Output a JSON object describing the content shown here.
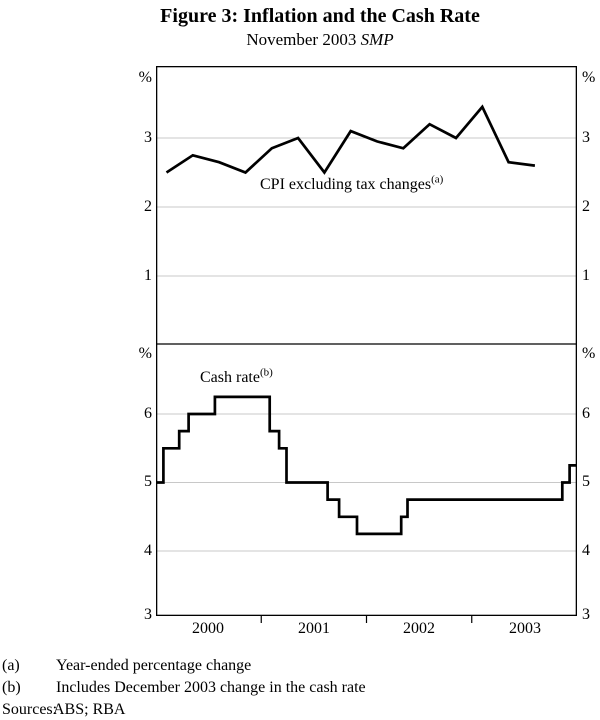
{
  "figure": {
    "title": "Figure 3: Inflation and the Cash Rate",
    "subtitle_prefix": "November 2003 ",
    "subtitle_em": "SMP"
  },
  "chart_data": [
    {
      "type": "line",
      "panel": "top",
      "series_label": "CPI excluding tax changes",
      "series_label_superscript": "(a)",
      "unit": "%",
      "ylim": [
        0,
        4
      ],
      "yticks": [
        1,
        2,
        3
      ],
      "quarters": [
        "2000Q1",
        "2000Q2",
        "2000Q3",
        "2000Q4",
        "2001Q1",
        "2001Q2",
        "2001Q3",
        "2001Q4",
        "2002Q1",
        "2002Q2",
        "2002Q3",
        "2002Q4",
        "2003Q1",
        "2003Q2",
        "2003Q3"
      ],
      "x": [
        2000.1,
        2000.35,
        2000.6,
        2000.85,
        2001.1,
        2001.35,
        2001.6,
        2001.85,
        2002.1,
        2002.35,
        2002.6,
        2002.85,
        2003.1,
        2003.35,
        2003.6
      ],
      "values": [
        2.5,
        2.75,
        2.65,
        2.5,
        2.85,
        3.0,
        2.5,
        3.1,
        2.95,
        2.85,
        3.2,
        3.0,
        3.45,
        2.65,
        2.6
      ]
    },
    {
      "type": "step-line",
      "panel": "bottom",
      "series_label": "Cash rate",
      "series_label_superscript": "(b)",
      "unit": "%",
      "ylim": [
        3,
        7
      ],
      "yticks": [
        4,
        5,
        6
      ],
      "x_end": 2004.0,
      "steps": [
        {
          "x": 2000.0,
          "y": 5.0
        },
        {
          "x": 2000.07,
          "y": 5.5
        },
        {
          "x": 2000.22,
          "y": 5.75
        },
        {
          "x": 2000.31,
          "y": 6.0
        },
        {
          "x": 2000.56,
          "y": 6.25
        },
        {
          "x": 2001.08,
          "y": 5.75
        },
        {
          "x": 2001.17,
          "y": 5.5
        },
        {
          "x": 2001.24,
          "y": 5.0
        },
        {
          "x": 2001.63,
          "y": 4.75
        },
        {
          "x": 2001.74,
          "y": 4.5
        },
        {
          "x": 2001.91,
          "y": 4.25
        },
        {
          "x": 2002.33,
          "y": 4.5
        },
        {
          "x": 2002.39,
          "y": 4.75
        },
        {
          "x": 2003.86,
          "y": 5.0
        },
        {
          "x": 2003.93,
          "y": 5.25
        }
      ]
    }
  ],
  "x_axis": {
    "range": [
      2000,
      2004
    ],
    "labels": [
      "2000",
      "2001",
      "2002",
      "2003"
    ],
    "tick_years": [
      2001,
      2002,
      2003
    ]
  },
  "bottom_axis_label": "3",
  "footnotes": [
    {
      "marker": "(a)",
      "text": "Year-ended percentage change"
    },
    {
      "marker": "(b)",
      "text": "Includes December 2003 change in the cash rate"
    }
  ],
  "sources": {
    "label": "Sources:",
    "text": "ABS; RBA"
  },
  "colors": {
    "line": "#000000",
    "grid": "#c8c8c8",
    "axis": "#000000",
    "text": "#000000",
    "background": "#ffffff"
  }
}
